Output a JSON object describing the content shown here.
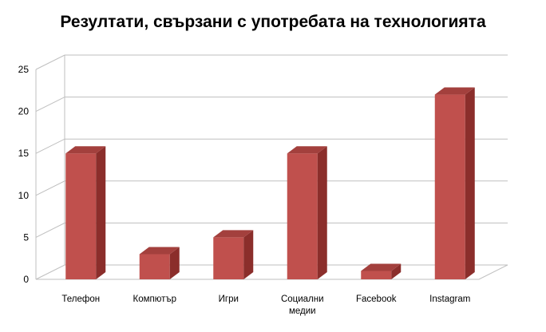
{
  "chart_data": {
    "type": "bar",
    "title": "Резултати, свързани с употребата на технологията",
    "xlabel": "",
    "ylabel": "",
    "ylim": [
      0,
      25
    ],
    "yticks": [
      "0",
      "5",
      "10",
      "15",
      "20",
      "25"
    ],
    "categories": [
      [
        "Телефон"
      ],
      [
        "Компютър"
      ],
      [
        "Игри"
      ],
      [
        "Социални",
        "медии"
      ],
      [
        "Facebook"
      ],
      [
        "Instagram"
      ]
    ],
    "values": [
      15,
      3,
      5,
      15,
      1,
      22
    ],
    "grid": true,
    "legend": "none",
    "bar_color": "#c0504d",
    "bar_side_color": "#8b2e2b",
    "bar_top_color": "#a3403d"
  }
}
